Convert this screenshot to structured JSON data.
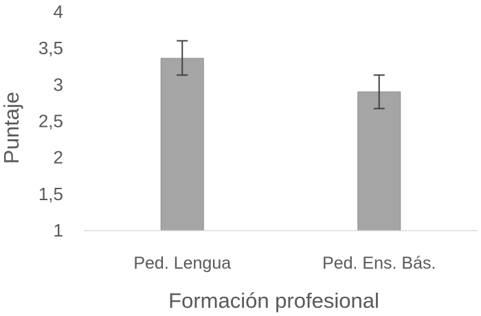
{
  "chart_data": {
    "type": "bar",
    "title": "",
    "xlabel": "Formación profesional",
    "ylabel": "Puntaje",
    "categories": [
      "Ped. Lengua",
      "Ped. Ens. Bás."
    ],
    "values": [
      3.36,
      2.9
    ],
    "error_low": [
      3.13,
      2.67
    ],
    "error_high": [
      3.6,
      3.13
    ],
    "ylim": [
      1,
      4
    ],
    "yticks": [
      "1",
      "1,5",
      "2",
      "2,5",
      "3",
      "3,5",
      "4"
    ],
    "ytick_values": [
      1,
      1.5,
      2,
      2.5,
      3,
      3.5,
      4
    ],
    "grid": false,
    "legend": "none",
    "bar_color": "#a5a5a5",
    "bar_edge_color": "#8c8c8c",
    "error_color": "#404040",
    "axis_color": "#d9d9d9",
    "text_color": "#595959"
  }
}
